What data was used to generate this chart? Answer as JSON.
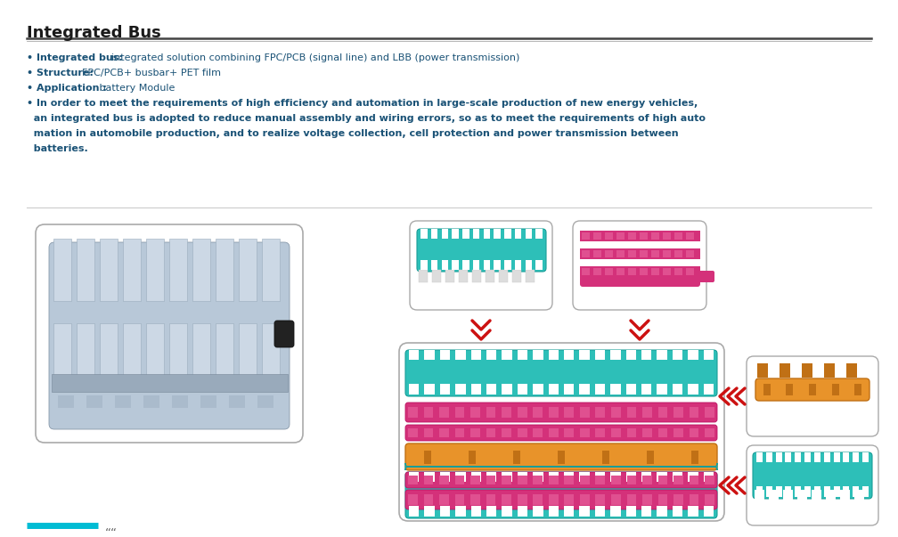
{
  "title": "Integrated Bus",
  "background_color": "#ffffff",
  "title_color": "#1a1a1a",
  "title_fontsize": 13,
  "text_color": "#1a5276",
  "text_fontsize": 8.0,
  "line1_bold": "• Integrated bus:",
  "line1_normal": "  integrated solution combining FPC/PCB (signal line) and LBB (power transmission)",
  "line2_bold": "• Structure:",
  "line2_normal": "FPC/PCB+ busbar+ PET film",
  "line3_bold": "• Application :",
  "line3_normal": " battery Module",
  "line4": "• In order to meet the requirements of high efficiency and automation in large-scale production of new energy vehicles,",
  "line5": "  an integrated bus is adopted to reduce manual assembly and wiring errors, so as to meet the requirements of high auto",
  "line6": "  mation in automobile production, and to realize voltage collection, cell protection and power transmission between",
  "line7": "  batteries.",
  "teal_color": "#2dbfb8",
  "teal_dark": "#1a9e98",
  "pink_color": "#d4317a",
  "pink_light": "#e05090",
  "orange_color": "#e8932a",
  "orange_dark": "#c07015",
  "red_arrow": "#cc1111",
  "box_edge": "#aaaaaa",
  "footer_cyan": "#00bcd4"
}
